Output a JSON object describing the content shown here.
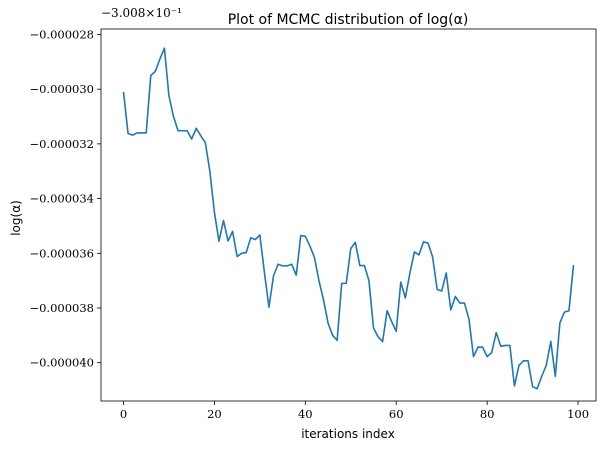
{
  "chart_data": {
    "type": "line",
    "title": "Plot of MCMC distribution of log(α)",
    "xlabel": "iterations index",
    "ylabel": "log(α)",
    "y_offset_text": "−3.008×10⁻¹",
    "xlim": [
      -4.95,
      103.95
    ],
    "ylim": [
      -4.14e-05,
      -2.78e-05
    ],
    "x_ticks": [
      0,
      20,
      40,
      60,
      80,
      100
    ],
    "x_tick_labels": [
      "0",
      "20",
      "40",
      "60",
      "80",
      "100"
    ],
    "y_ticks": [
      -4e-05,
      -3.8e-05,
      -3.6e-05,
      -3.4e-05,
      -3.2e-05,
      -3e-05,
      -2.8e-05
    ],
    "y_tick_labels": [
      "−0.000040",
      "−0.000038",
      "−0.000036",
      "−0.000034",
      "−0.000032",
      "−0.000030",
      "−0.000028"
    ],
    "grid": false,
    "color": "#1f77b4",
    "x": [
      0,
      1,
      2,
      3,
      4,
      5,
      6,
      7,
      8,
      9,
      10,
      11,
      12,
      13,
      14,
      15,
      16,
      17,
      18,
      19,
      20,
      21,
      22,
      23,
      24,
      25,
      26,
      27,
      28,
      29,
      30,
      31,
      32,
      33,
      34,
      35,
      36,
      37,
      38,
      39,
      40,
      41,
      42,
      43,
      44,
      45,
      46,
      47,
      48,
      49,
      50,
      51,
      52,
      53,
      54,
      55,
      56,
      57,
      58,
      59,
      60,
      61,
      62,
      63,
      64,
      65,
      66,
      67,
      68,
      69,
      70,
      71,
      72,
      73,
      74,
      75,
      76,
      77,
      78,
      79,
      80,
      81,
      82,
      83,
      84,
      85,
      86,
      87,
      88,
      89,
      90,
      91,
      92,
      93,
      94,
      95,
      96,
      97,
      98,
      99
    ],
    "y": [
      -3.01e-05,
      -3.162e-05,
      -3.168e-05,
      -3.16e-05,
      -3.16e-05,
      -3.16e-05,
      -2.95e-05,
      -2.935e-05,
      -2.89e-05,
      -2.85e-05,
      -3.025e-05,
      -3.1e-05,
      -3.152e-05,
      -3.152e-05,
      -3.152e-05,
      -3.182e-05,
      -3.143e-05,
      -3.17e-05,
      -3.196e-05,
      -3.3e-05,
      -3.45e-05,
      -3.556e-05,
      -3.48e-05,
      -3.555e-05,
      -3.52e-05,
      -3.612e-05,
      -3.6e-05,
      -3.597e-05,
      -3.543e-05,
      -3.55e-05,
      -3.533e-05,
      -3.67e-05,
      -3.797e-05,
      -3.683e-05,
      -3.64e-05,
      -3.646e-05,
      -3.646e-05,
      -3.64e-05,
      -3.68e-05,
      -3.535e-05,
      -3.538e-05,
      -3.573e-05,
      -3.615e-05,
      -3.7e-05,
      -3.77e-05,
      -3.855e-05,
      -3.9e-05,
      -3.918e-05,
      -3.71e-05,
      -3.71e-05,
      -3.583e-05,
      -3.56e-05,
      -3.645e-05,
      -3.645e-05,
      -3.7e-05,
      -3.873e-05,
      -3.905e-05,
      -3.923e-05,
      -3.81e-05,
      -3.85e-05,
      -3.885e-05,
      -3.705e-05,
      -3.763e-05,
      -3.673e-05,
      -3.595e-05,
      -3.606e-05,
      -3.558e-05,
      -3.563e-05,
      -3.613e-05,
      -3.732e-05,
      -3.738e-05,
      -3.672e-05,
      -3.807e-05,
      -3.758e-05,
      -3.782e-05,
      -3.782e-05,
      -3.84e-05,
      -3.978e-05,
      -3.943e-05,
      -3.943e-05,
      -3.978e-05,
      -3.963e-05,
      -3.89e-05,
      -3.94e-05,
      -3.937e-05,
      -3.937e-05,
      -4.085e-05,
      -4.01e-05,
      -3.993e-05,
      -3.993e-05,
      -4.088e-05,
      -4.095e-05,
      -4.05e-05,
      -4.01e-05,
      -3.922e-05,
      -4.05e-05,
      -3.855e-05,
      -3.815e-05,
      -3.81e-05,
      -3.643e-05
    ]
  }
}
